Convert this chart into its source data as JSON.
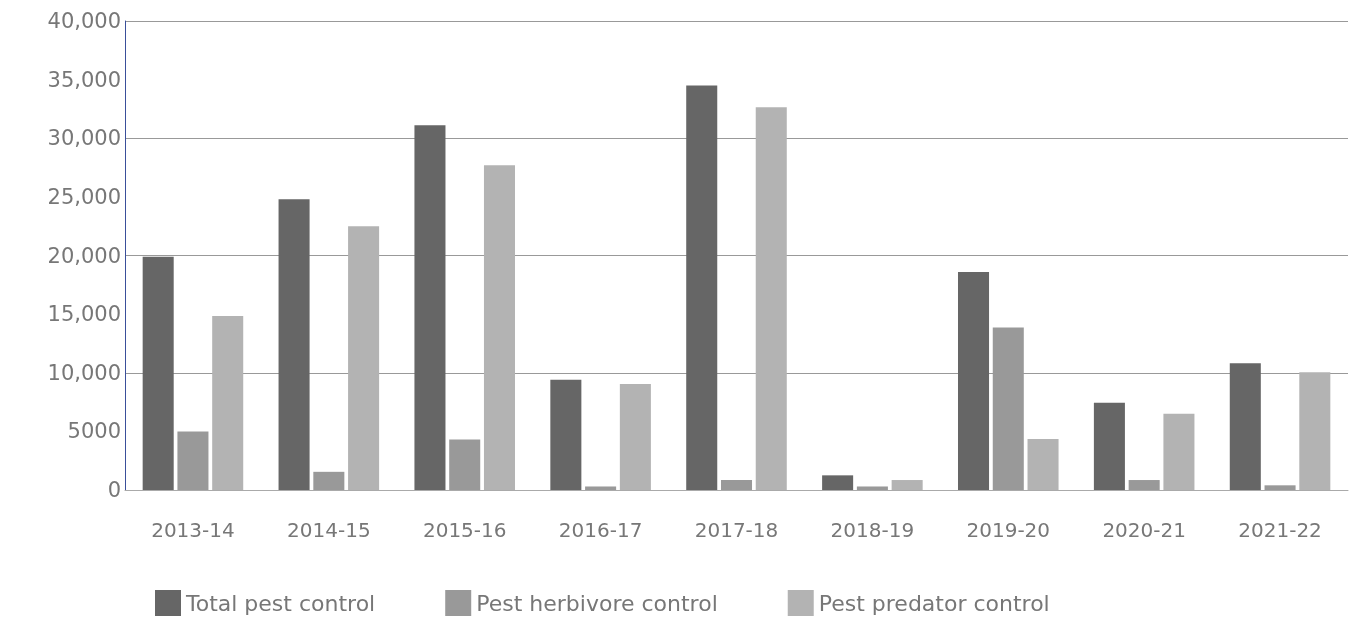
{
  "chart_data": {
    "type": "bar",
    "categories": [
      "2013-14",
      "2014-15",
      "2015-16",
      "2016-17",
      "2017-18",
      "2018-19",
      "2019-20",
      "2020-21",
      "2021-22"
    ],
    "series": [
      {
        "name": "Total pest control",
        "color": "#666666",
        "values": [
          19900,
          24800,
          31100,
          9400,
          34500,
          1250,
          18600,
          7450,
          10800
        ]
      },
      {
        "name": "Pest herbivore control",
        "color": "#999999",
        "values": [
          5000,
          1550,
          4300,
          300,
          850,
          300,
          13850,
          850,
          400
        ]
      },
      {
        "name": "Pest predator control",
        "color": "#b3b3b3",
        "values": [
          14850,
          22500,
          27700,
          9050,
          32650,
          850,
          4350,
          6500,
          10050
        ]
      }
    ],
    "ylim": [
      0,
      40000
    ],
    "yticks": [
      {
        "value": 0,
        "label": "0"
      },
      {
        "value": 5000,
        "label": "5000"
      },
      {
        "value": 10000,
        "label": "10,000"
      },
      {
        "value": 15000,
        "label": "15,000"
      },
      {
        "value": 20000,
        "label": "20,000"
      },
      {
        "value": 25000,
        "label": "25,000"
      },
      {
        "value": 30000,
        "label": "30,000"
      },
      {
        "value": 35000,
        "label": "35,000"
      },
      {
        "value": 40000,
        "label": "40,000"
      }
    ],
    "grid": "y",
    "legend": "bottom"
  }
}
